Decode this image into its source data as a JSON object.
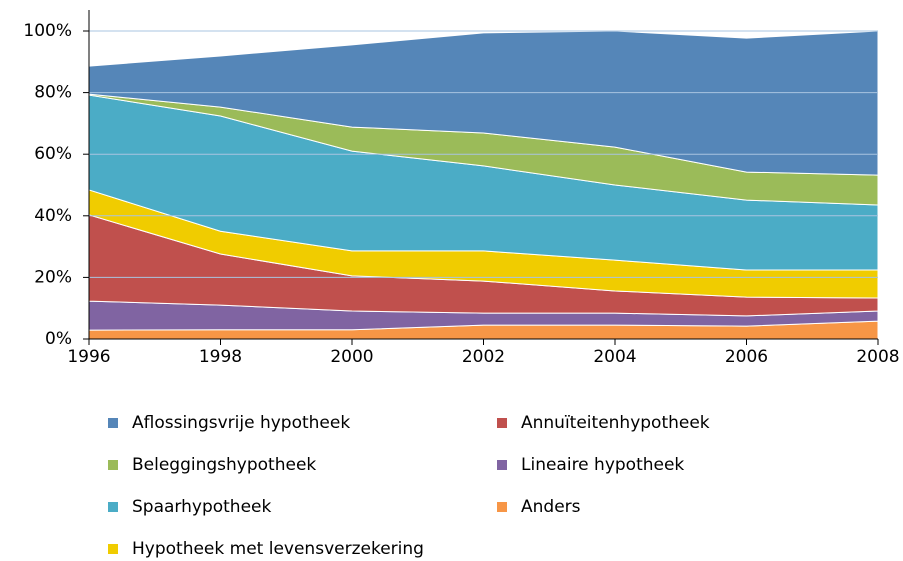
{
  "chart_data": {
    "type": "stacked_area",
    "x": [
      1996,
      1998,
      2000,
      2002,
      2004,
      2006,
      2008
    ],
    "xlim": [
      1996,
      2008
    ],
    "xticks": [
      1996,
      1998,
      2000,
      2002,
      2004,
      2006,
      2008
    ],
    "ylim": [
      0,
      100
    ],
    "yticks": [
      {
        "value": 0,
        "label": "0%"
      },
      {
        "value": 20,
        "label": "20%"
      },
      {
        "value": 40,
        "label": "40%"
      },
      {
        "value": 60,
        "label": "60%"
      },
      {
        "value": 80,
        "label": "80%"
      },
      {
        "value": 100,
        "label": "100%"
      }
    ],
    "grid": true,
    "legend": "bottom",
    "series": [
      {
        "name": "Aflossingsvrije hypotheek",
        "color": "#5586b8",
        "values": [
          9.1,
          16.6,
          26.7,
          32.5,
          37.7,
          43.5,
          46.8
        ]
      },
      {
        "name": "Annuïteitenhypotheek",
        "color": "#c0504d",
        "values": [
          28,
          16.6,
          11.4,
          10.4,
          7.2,
          6.1,
          4.2
        ]
      },
      {
        "name": "Beleggingshypotheek",
        "color": "#9bbb59",
        "values": [
          0.3,
          2.9,
          7.8,
          10.7,
          12.3,
          9.1,
          9.7
        ]
      },
      {
        "name": "Lineaire hypotheek",
        "color": "#8064a2",
        "values": [
          9.4,
          8,
          6.1,
          3.9,
          3.9,
          3.3,
          3.3
        ]
      },
      {
        "name": "Spaarhypotheek",
        "color": "#4bacc6",
        "values": [
          30.8,
          37.4,
          32.4,
          27.6,
          24.4,
          22.7,
          21.1
        ]
      },
      {
        "name": "Anders",
        "color": "#f79646",
        "values": [
          2.9,
          3,
          3,
          4.5,
          4.5,
          4.2,
          5.8
        ]
      },
      {
        "name": "Hypotheek met levensverzekering",
        "color": "#f0cc00",
        "values": [
          8.1,
          7.4,
          8.1,
          9.8,
          10,
          8.8,
          9.1
        ]
      }
    ]
  }
}
